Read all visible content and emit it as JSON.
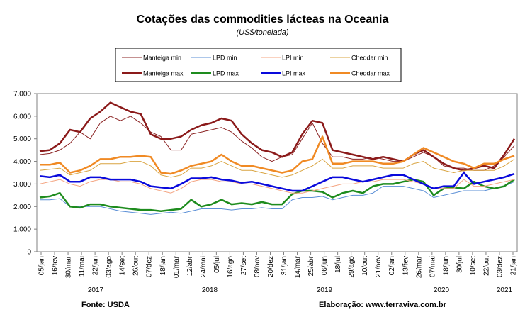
{
  "chart_data": {
    "type": "line",
    "title": "Cotações das commodities lácteas na Oceania",
    "subtitle": "(US$/tonelada)",
    "ylim": [
      0,
      7000
    ],
    "yticks": [
      "0",
      "1.000",
      "2.000",
      "3.000",
      "4.000",
      "5.000",
      "6.000",
      "7.000"
    ],
    "grid": "vertical",
    "legend_position": "top",
    "xticks": [
      "05/jan",
      "16/fev",
      "30/mar",
      "11/mai",
      "22/jun",
      "03/ago",
      "14/set",
      "26/out",
      "07/dez",
      "18/jan",
      "01/mar",
      "12/abr",
      "24/mai",
      "05/jul",
      "16/ago",
      "27/set",
      "08/nov",
      "20/dez",
      "31/jan",
      "14/mar",
      "25/abr",
      "06/jun",
      "18/jul",
      "29/ago",
      "10/out",
      "21/nov",
      "02/jan",
      "13/fev",
      "26/mar",
      "07/mai",
      "18/jun",
      "30/jul",
      "10/set",
      "22/out",
      "03/dez",
      "21/jan"
    ],
    "years": [
      "2017",
      "2018",
      "2019",
      "2020",
      "2021"
    ],
    "series": [
      {
        "name": "Manteiga min",
        "color": "#8b2323",
        "width": 1,
        "values": [
          4300,
          4350,
          4500,
          4800,
          5300,
          5000,
          5700,
          6000,
          5800,
          6000,
          5700,
          5300,
          5100,
          4500,
          4500,
          5200,
          5300,
          5400,
          5500,
          5300,
          4900,
          4600,
          4200,
          4000,
          4200,
          4300,
          5000,
          5700,
          4800,
          4200,
          4200,
          4100,
          4100,
          4200,
          4100,
          4000,
          4000,
          4200,
          4400,
          4200,
          3800,
          3700,
          3700,
          3600,
          3600,
          3800,
          4200,
          4700
        ]
      },
      {
        "name": "Manteiga max",
        "color": "#8b1a1a",
        "width": 2.5,
        "values": [
          4450,
          4500,
          4800,
          5400,
          5300,
          5900,
          6200,
          6600,
          6400,
          6200,
          6100,
          5200,
          5000,
          5000,
          5100,
          5400,
          5600,
          5700,
          5900,
          5800,
          5200,
          4800,
          4500,
          4400,
          4200,
          4400,
          5200,
          5800,
          5700,
          4500,
          4400,
          4300,
          4200,
          4100,
          4200,
          4100,
          4000,
          4300,
          4500,
          4200,
          3900,
          3700,
          3600,
          3700,
          3800,
          3700,
          4300,
          5000
        ]
      },
      {
        "name": "LPD min",
        "color": "#5b8fd6",
        "width": 1,
        "values": [
          2300,
          2300,
          2350,
          2000,
          2000,
          2000,
          2000,
          1900,
          1800,
          1750,
          1700,
          1650,
          1700,
          1750,
          1700,
          1800,
          1900,
          1900,
          1900,
          1850,
          1900,
          1900,
          1950,
          1900,
          1900,
          2300,
          2400,
          2400,
          2450,
          2300,
          2400,
          2500,
          2500,
          2600,
          2900,
          2900,
          2900,
          2800,
          2700,
          2400,
          2500,
          2600,
          2700,
          2700,
          2700,
          2800,
          2900,
          3100
        ]
      },
      {
        "name": "LPD max",
        "color": "#1e8c1e",
        "width": 2.5,
        "values": [
          2400,
          2450,
          2600,
          2000,
          1950,
          2100,
          2100,
          2000,
          1950,
          1900,
          1850,
          1850,
          1800,
          1850,
          1900,
          2300,
          2000,
          2100,
          2300,
          2100,
          2150,
          2100,
          2200,
          2100,
          2100,
          2550,
          2700,
          2700,
          2650,
          2400,
          2600,
          2700,
          2600,
          2900,
          3000,
          3000,
          3100,
          3200,
          3100,
          2500,
          2800,
          2850,
          2800,
          3100,
          2900,
          2800,
          2900,
          3200
        ]
      },
      {
        "name": "LPI min",
        "color": "#f4a582",
        "width": 1,
        "values": [
          3000,
          3100,
          3200,
          3000,
          2900,
          3100,
          3200,
          3200,
          3100,
          3100,
          3000,
          2800,
          2700,
          2600,
          2800,
          3100,
          3200,
          3200,
          3100,
          3100,
          3000,
          3000,
          2900,
          2800,
          2700,
          2600,
          2600,
          2700,
          2800,
          2900,
          3000,
          3000,
          3100,
          3100,
          3200,
          3200,
          3200,
          3100,
          3000,
          2800,
          2800,
          2800,
          3200,
          2900,
          2900,
          3000,
          3100,
          3200
        ]
      },
      {
        "name": "LPI max",
        "color": "#0a0adc",
        "width": 2.5,
        "values": [
          3350,
          3300,
          3400,
          3100,
          3100,
          3300,
          3300,
          3200,
          3200,
          3200,
          3100,
          2900,
          2850,
          2800,
          3000,
          3250,
          3250,
          3300,
          3200,
          3150,
          3050,
          3100,
          3000,
          2900,
          2800,
          2700,
          2700,
          2900,
          3100,
          3300,
          3300,
          3200,
          3100,
          3200,
          3300,
          3400,
          3400,
          3200,
          3000,
          2800,
          2900,
          2900,
          3500,
          3000,
          3100,
          3200,
          3300,
          3450
        ]
      },
      {
        "name": "Cheddar min",
        "color": "#d9a441",
        "width": 1,
        "values": [
          3600,
          3650,
          3700,
          3400,
          3500,
          3600,
          3900,
          3900,
          3900,
          4000,
          4000,
          3800,
          3400,
          3300,
          3400,
          3700,
          3700,
          3800,
          4000,
          3800,
          3600,
          3600,
          3500,
          3400,
          3300,
          3400,
          3600,
          3800,
          4100,
          3700,
          3700,
          3800,
          3800,
          3800,
          3700,
          3700,
          3700,
          3900,
          4000,
          3700,
          3600,
          3500,
          3600,
          3600,
          3600,
          3600,
          3800,
          4100
        ]
      },
      {
        "name": "Cheddar max",
        "color": "#f08a24",
        "width": 2.5,
        "values": [
          3850,
          3850,
          3950,
          3500,
          3600,
          3800,
          4100,
          4100,
          4200,
          4200,
          4250,
          4200,
          3500,
          3450,
          3600,
          3800,
          3900,
          4000,
          4300,
          4000,
          3800,
          3800,
          3700,
          3600,
          3500,
          3600,
          4000,
          4100,
          5100,
          3900,
          3900,
          4000,
          4000,
          4000,
          3900,
          3900,
          4000,
          4300,
          4600,
          4400,
          4200,
          4000,
          3900,
          3700,
          3900,
          3900,
          4100,
          4250
        ]
      }
    ]
  },
  "footer": {
    "source": "Fonte: USDA",
    "credit": "Elaboração: www.terraviva.com.br"
  }
}
